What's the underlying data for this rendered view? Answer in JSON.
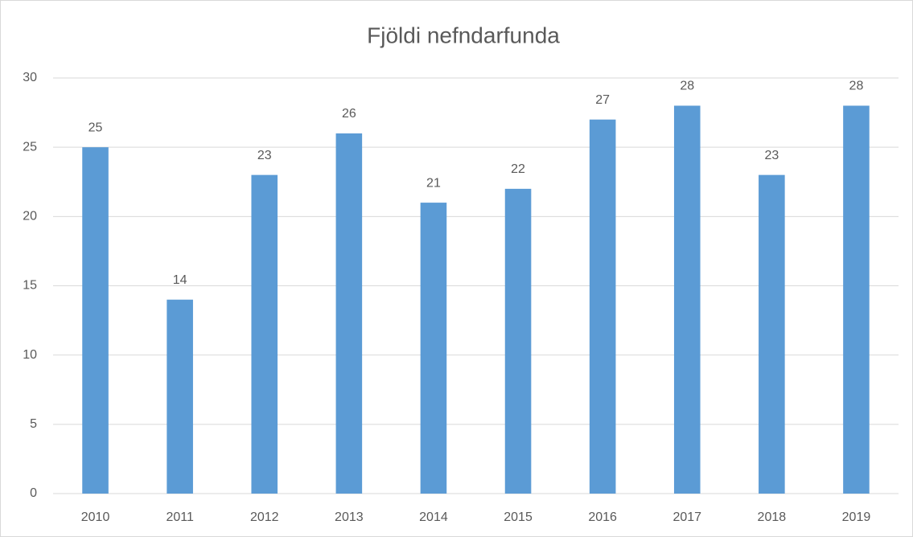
{
  "chart_data": {
    "type": "bar",
    "title": "Fjöldi nefndarfunda",
    "categories": [
      "2010",
      "2011",
      "2012",
      "2013",
      "2014",
      "2015",
      "2016",
      "2017",
      "2018",
      "2019"
    ],
    "values": [
      25,
      14,
      23,
      26,
      21,
      22,
      27,
      28,
      23,
      28
    ],
    "color": "#5b9bd5",
    "ylim": [
      0,
      30
    ],
    "yticks": [
      0,
      5,
      10,
      15,
      20,
      25,
      30
    ],
    "grid": true,
    "data_labels": true
  }
}
